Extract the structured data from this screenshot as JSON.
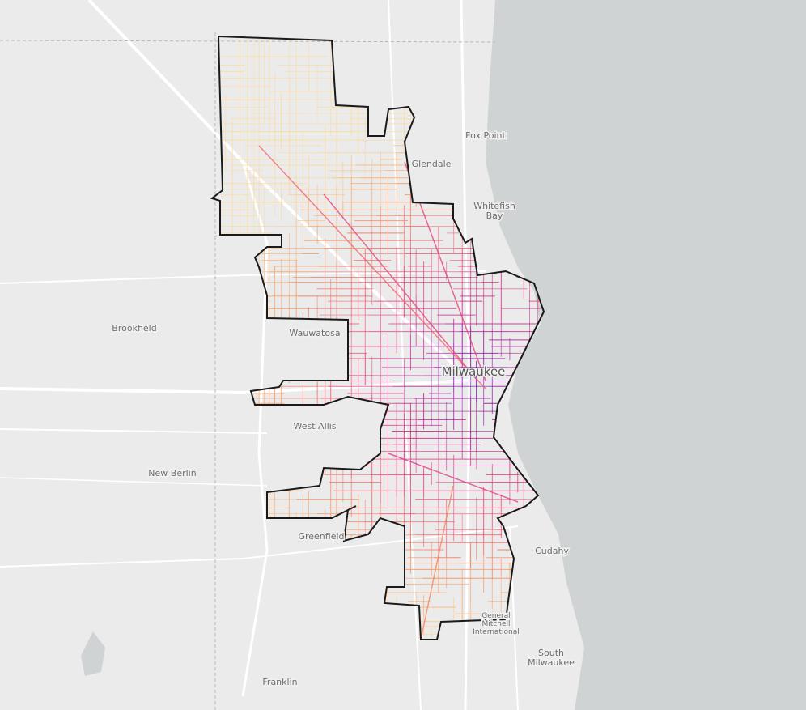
{
  "labels": [
    {
      "lines": [
        "Fox Point"
      ]
    },
    {
      "lines": [
        "Glendale"
      ]
    },
    {
      "lines": [
        "Whitefish",
        "Bay"
      ]
    },
    {
      "lines": [
        "Brookfield"
      ]
    },
    {
      "lines": [
        "Wauwatosa"
      ]
    },
    {
      "lines": [
        "Milwaukee"
      ]
    },
    {
      "lines": [
        "West Allis"
      ]
    },
    {
      "lines": [
        "New Berlin"
      ]
    },
    {
      "lines": [
        "Greenfield"
      ]
    },
    {
      "lines": [
        "Cudahy"
      ]
    },
    {
      "lines": [
        "General",
        "Mitchell",
        "International"
      ]
    },
    {
      "lines": [
        "South",
        "Milwaukee"
      ]
    },
    {
      "lines": [
        "Franklin"
      ]
    }
  ]
}
